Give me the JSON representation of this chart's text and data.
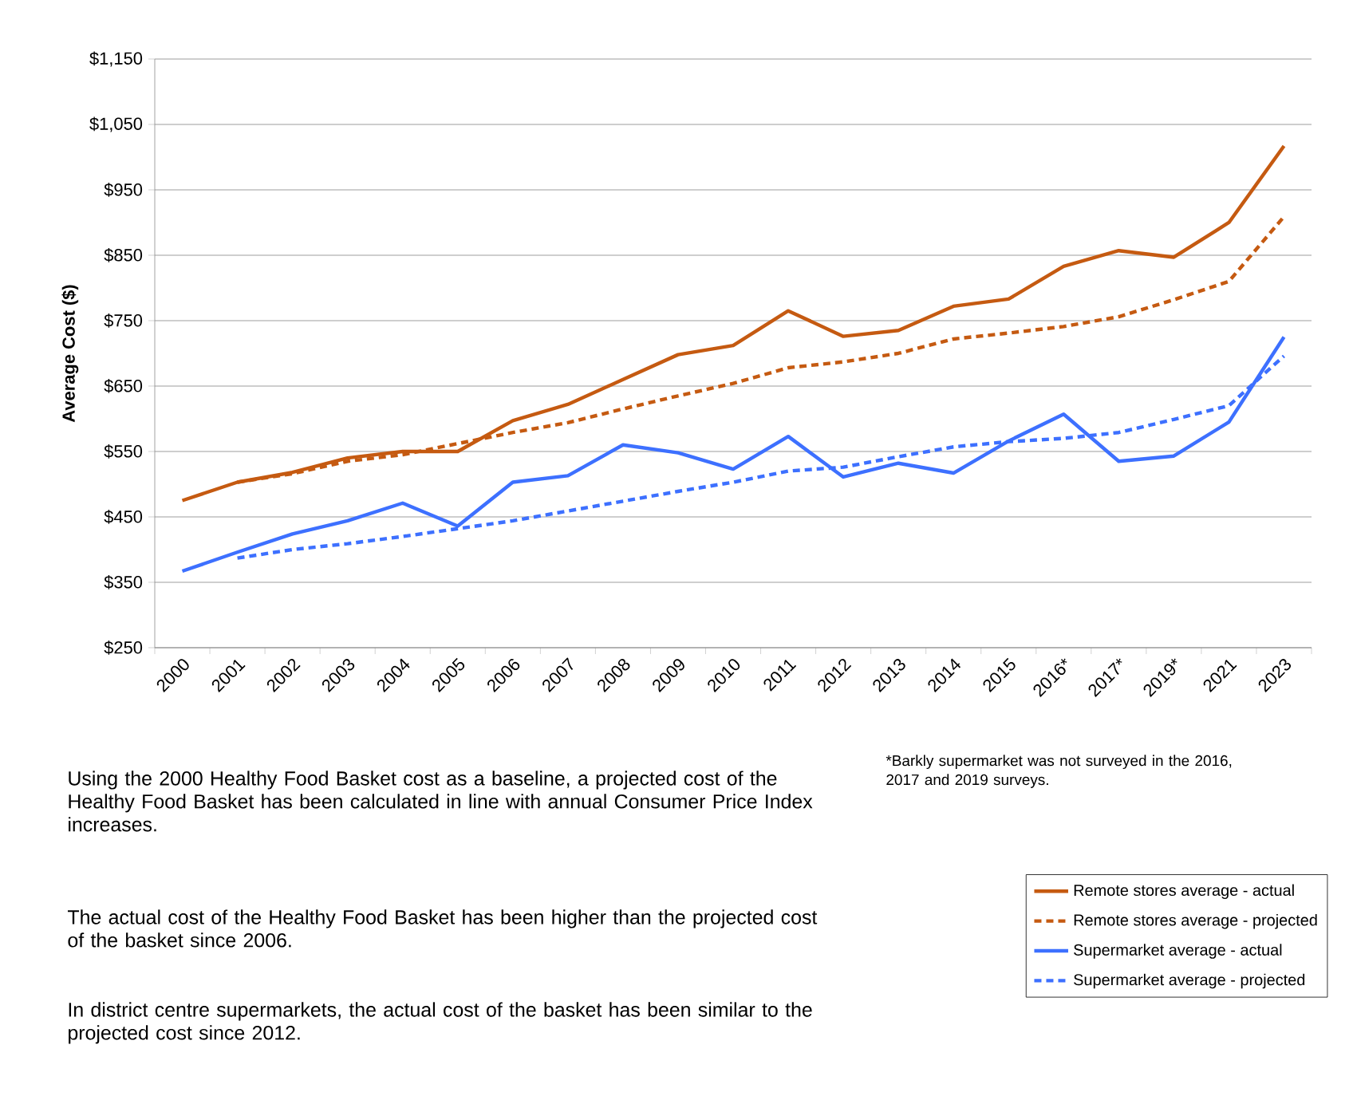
{
  "chart_data": {
    "type": "line",
    "ylabel": "Average Cost ($)",
    "categories": [
      "2000",
      "2001",
      "2002",
      "2003",
      "2004",
      "2005",
      "2006",
      "2007",
      "2008",
      "2009",
      "2010",
      "2011",
      "2012",
      "2013",
      "2014",
      "2015",
      "2016*",
      "2017*",
      "2019*",
      "2021",
      "2023"
    ],
    "series": [
      {
        "name": "Remote stores average - actual",
        "color": "#c55a11",
        "line_style": "solid",
        "values": [
          475,
          503,
          518,
          540,
          550,
          550,
          597,
          622,
          660,
          698,
          712,
          765,
          726,
          735,
          772,
          783,
          833,
          857,
          847,
          900,
          1017
        ]
      },
      {
        "name": "Remote stores average - projected",
        "color": "#c55a11",
        "line_style": "dashed",
        "values": [
          null,
          503,
          516,
          535,
          545,
          562,
          579,
          594,
          615,
          635,
          654,
          678,
          687,
          700,
          722,
          731,
          741,
          756,
          782,
          810,
          909
        ]
      },
      {
        "name": "Supermarket average - actual",
        "color": "#3d70ff",
        "line_style": "solid",
        "values": [
          367,
          396,
          424,
          444,
          471,
          436,
          503,
          513,
          560,
          548,
          523,
          573,
          511,
          532,
          517,
          566,
          607,
          535,
          543,
          595,
          725
        ]
      },
      {
        "name": "Supermarket average - projected",
        "color": "#3d70ff",
        "line_style": "dashed",
        "values": [
          null,
          387,
          400,
          409,
          420,
          432,
          444,
          459,
          474,
          489,
          503,
          520,
          526,
          542,
          557,
          565,
          570,
          579,
          599,
          620,
          696
        ]
      }
    ],
    "ylim": [
      250,
      1150
    ],
    "yticks": [
      {
        "value": 250,
        "label": "$250"
      },
      {
        "value": 350,
        "label": "$350"
      },
      {
        "value": 450,
        "label": "$450"
      },
      {
        "value": 550,
        "label": "$550"
      },
      {
        "value": 650,
        "label": "$650"
      },
      {
        "value": 750,
        "label": "$750"
      },
      {
        "value": 850,
        "label": "$850"
      },
      {
        "value": 950,
        "label": "$950"
      },
      {
        "value": 1050,
        "label": "$1,050"
      },
      {
        "value": 1150,
        "label": "$1,150"
      }
    ],
    "grid": "y",
    "legend": "bottom right",
    "annotations": [
      "*Barkly supermarket was not surveyed in the 2016, 2017 and 2019 surveys.",
      "Using the 2000 Healthy Food Basket cost as a baseline, a projected cost of the Healthy Food Basket has been calculated in line with annual Consumer Price Index increases.",
      "The actual cost of the Healthy Food Basket has been higher than the projected cost of the basket since 2006.",
      "In district centre supermarkets, the actual cost of the basket has been similar to the projected cost since 2012."
    ]
  }
}
